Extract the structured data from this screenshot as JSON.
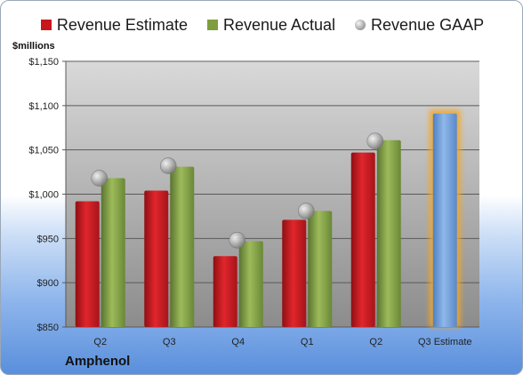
{
  "chart_data": {
    "type": "bar",
    "company": "Amphenol",
    "unit_label": "$millions",
    "categories": [
      "Q2",
      "Q3",
      "Q4",
      "Q1",
      "Q2",
      "Q3 Estimate"
    ],
    "series": [
      {
        "name": "Revenue Estimate",
        "type": "bar",
        "color": "#c8161d",
        "values": [
          992,
          1004,
          930,
          971,
          1047,
          null
        ]
      },
      {
        "name": "Revenue Actual",
        "type": "bar",
        "color": "#7e9d3e",
        "values": [
          1018,
          1031,
          947,
          981,
          1061,
          null
        ]
      },
      {
        "name": "Revenue GAAP",
        "type": "marker",
        "color": "#a6a6a6",
        "values": [
          1018,
          1032,
          948,
          981,
          1060,
          null
        ]
      }
    ],
    "forecast": {
      "category": "Q3 Estimate",
      "value": 1091,
      "color": "#6d9bd8",
      "glow": "#f5a623"
    },
    "yaxis": {
      "min": 850,
      "max": 1150,
      "step": 50,
      "tick_labels": [
        "$850",
        "$900",
        "$950",
        "$1,000",
        "$1,050",
        "$1,100",
        "$1,150"
      ]
    },
    "grid": true,
    "legend_position": "top"
  }
}
